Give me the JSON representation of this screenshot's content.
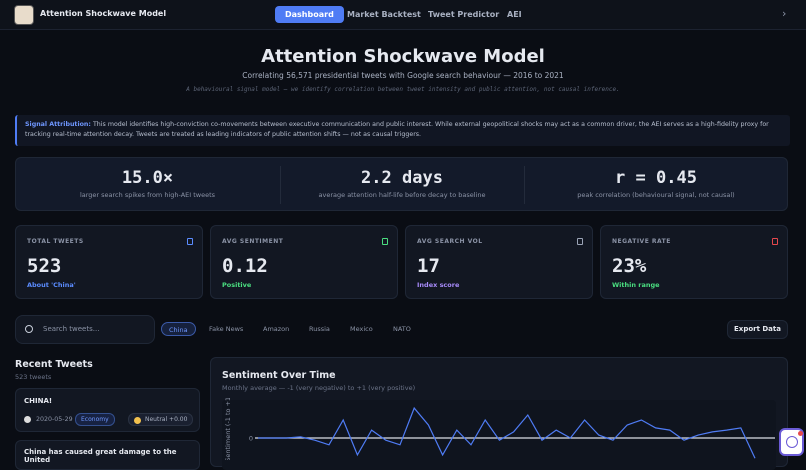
{
  "header": {
    "app_title": "Attention Shockwave Model",
    "nav": [
      "Dashboard",
      "Market Backtest",
      "Tweet Predictor",
      "AEI"
    ]
  },
  "hero": {
    "title": "Attention Shockwave Model",
    "subtitle": "Correlating 56,571 presidential tweets with Google search behaviour — 2016 to 2021",
    "note": "A behavioural signal model — we identify correlation between tweet intensity and public attention, not causal inference."
  },
  "attribution": {
    "label": "Signal Attribution:",
    "text": "This model identifies high-conviction co-movements between executive communication and public interest. While external geopolitical shocks may act as a common driver, the AEI serves as a high-fidelity proxy for tracking real-time attention decay. Tweets are treated as leading indicators of public attention shifts — not as causal triggers."
  },
  "highlights": [
    {
      "value": "15.0×",
      "caption": "larger search spikes from high-AEI tweets"
    },
    {
      "value": "2.2 days",
      "caption": "average attention half-life before decay to baseline"
    },
    {
      "value": "r = 0.45",
      "caption": "peak correlation (behavioural signal, not causal)"
    }
  ],
  "kpis": [
    {
      "label": "TOTAL TWEETS",
      "value": "523",
      "note": "About 'China'"
    },
    {
      "label": "AVG SENTIMENT",
      "value": "0.12",
      "note": "Positive"
    },
    {
      "label": "AVG SEARCH VOL",
      "value": "17",
      "note": "Index score"
    },
    {
      "label": "NEGATIVE RATE",
      "value": "23%",
      "note": "Within range"
    }
  ],
  "search": {
    "placeholder": "Search tweets...",
    "chips": [
      "China",
      "Fake News",
      "Amazon",
      "Russia",
      "Mexico",
      "NATO"
    ],
    "export": "Export Data"
  },
  "recent": {
    "title": "Recent Tweets",
    "count": "523 tweets",
    "tweets": [
      {
        "text": "CHINA!",
        "date": "2020-05-29",
        "tag": "Economy",
        "sentiment": "Neutral +0.00"
      },
      {
        "text": "China has caused great damage to the United"
      }
    ]
  },
  "chart_data": {
    "type": "line",
    "title": "Sentiment Over Time",
    "subtitle": "Monthly average — -1 (very negative) to +1 (very positive)",
    "y_label": "Sentiment (-1 to +1)",
    "color": "#4f7cf5",
    "values": [
      0,
      0,
      0,
      0.03,
      -0.06,
      -0.19,
      0.5,
      -0.47,
      0.22,
      -0.06,
      -0.19,
      0.83,
      0.36,
      -0.47,
      0.22,
      -0.19,
      0.5,
      -0.06,
      0.17,
      0.64,
      -0.06,
      0.22,
      0,
      0.5,
      0.08,
      -0.06,
      0.36,
      0.5,
      0.28,
      0.22,
      -0.06,
      0.08,
      0.17,
      0.22,
      0.28,
      -0.56
    ],
    "ylim": [
      -1,
      1
    ],
    "yticks": [
      0
    ]
  }
}
